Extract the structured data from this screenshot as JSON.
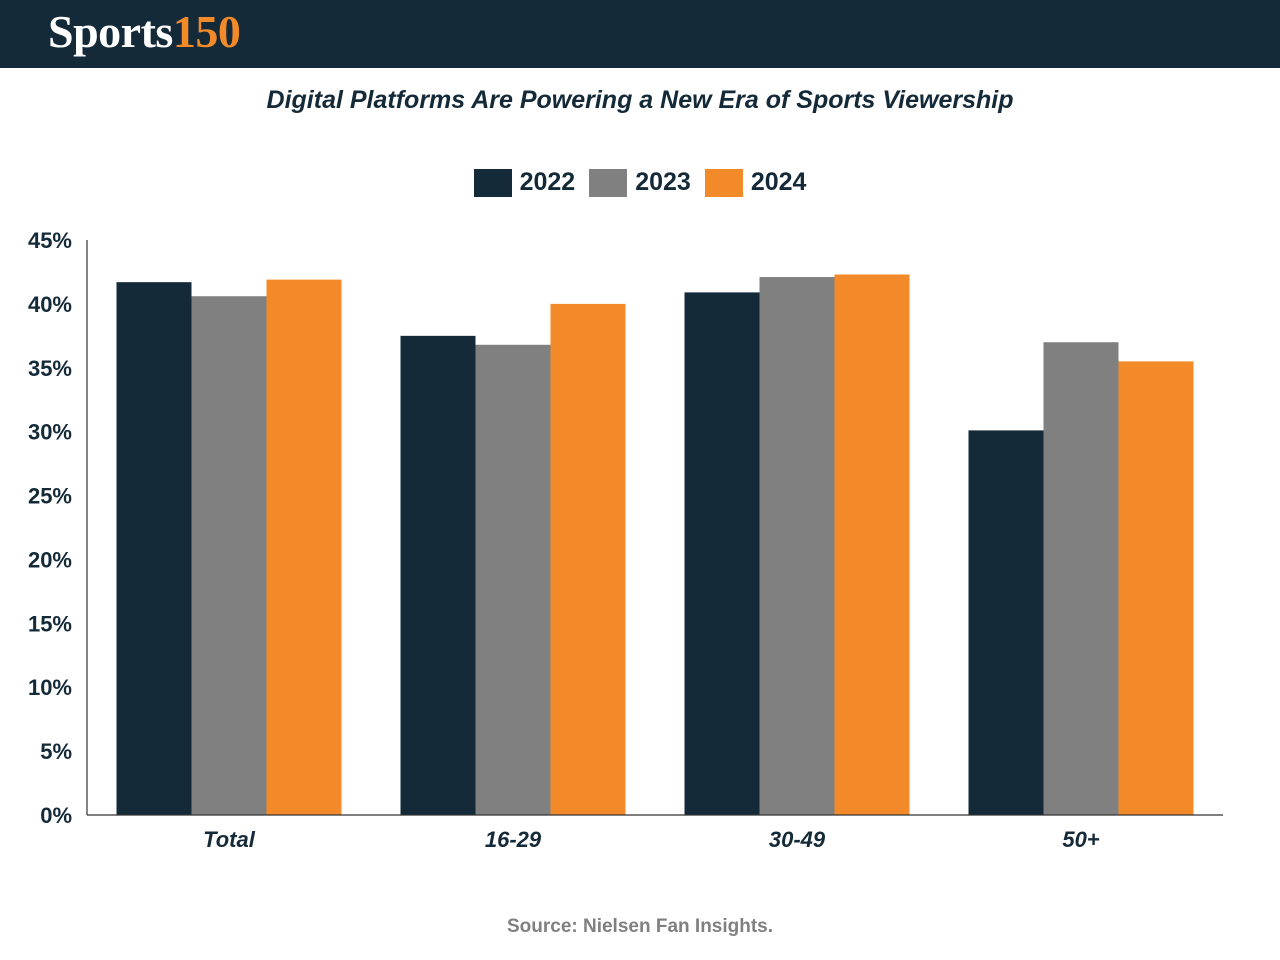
{
  "brand": {
    "logo_part1": "Sports",
    "logo_part2": "150"
  },
  "source": "Source: Nielsen Fan Insights.",
  "colors": {
    "header_bg": "#152a38",
    "accent": "#f28a2a"
  },
  "chart_data": {
    "type": "bar",
    "title": "Digital Platforms Are Powering a New Era of Sports Viewership",
    "categories": [
      "Total",
      "16-29",
      "30-49",
      "50+"
    ],
    "series": [
      {
        "name": "2022",
        "color": "#152a38",
        "values": [
          41.7,
          37.5,
          40.9,
          30.1
        ]
      },
      {
        "name": "2023",
        "color": "#808080",
        "values": [
          40.6,
          36.8,
          42.1,
          37.0
        ]
      },
      {
        "name": "2024",
        "color": "#f28a2a",
        "values": [
          41.9,
          40.0,
          42.3,
          35.5
        ]
      }
    ],
    "ylim": [
      0,
      45
    ],
    "yticks": [
      "0%",
      "5%",
      "10%",
      "15%",
      "20%",
      "25%",
      "30%",
      "35%",
      "40%",
      "45%"
    ],
    "xlabel": "",
    "ylabel": "",
    "legend_position": "top-center",
    "grid": false
  }
}
